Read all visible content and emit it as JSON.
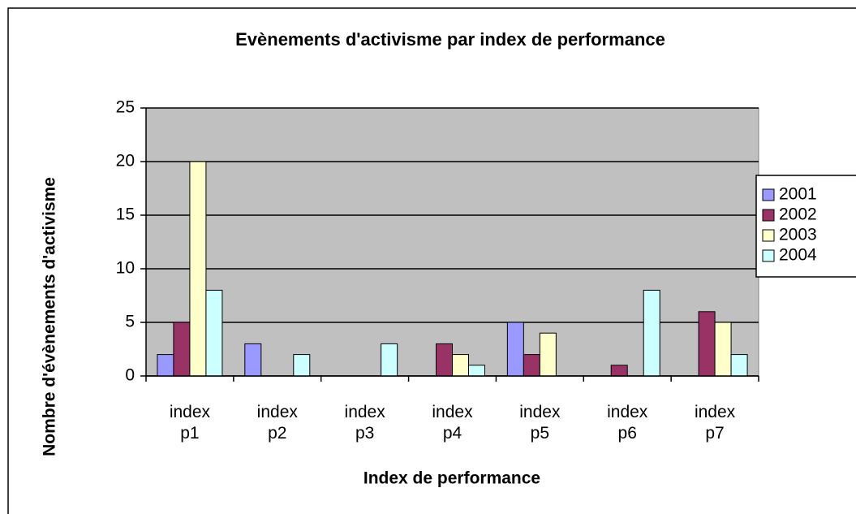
{
  "chart_data": {
    "type": "bar",
    "title": "Evènements d'activisme par index de performance",
    "x_label": "Index de performance",
    "y_label": "Nombre d'évènements d'activisme",
    "categories": [
      "index p1",
      "index p2",
      "index p3",
      "index p4",
      "index p5",
      "index p6",
      "index p7"
    ],
    "series": [
      {
        "name": "2001",
        "color": "#9999ff",
        "values": [
          2,
          3,
          0,
          0,
          5,
          0,
          0
        ]
      },
      {
        "name": "2002",
        "color": "#993366",
        "values": [
          5,
          0,
          0,
          3,
          2,
          1,
          6
        ]
      },
      {
        "name": "2003",
        "color": "#ffffcc",
        "values": [
          20,
          0,
          0,
          2,
          4,
          0,
          5
        ]
      },
      {
        "name": "2004",
        "color": "#ccffff",
        "values": [
          8,
          2,
          3,
          1,
          0,
          8,
          2
        ]
      }
    ],
    "ylim": [
      0,
      25
    ],
    "yticks": [
      0,
      5,
      10,
      15,
      20,
      25
    ],
    "grid": true,
    "legend": "right",
    "plot_background": "#c0c0c0"
  }
}
